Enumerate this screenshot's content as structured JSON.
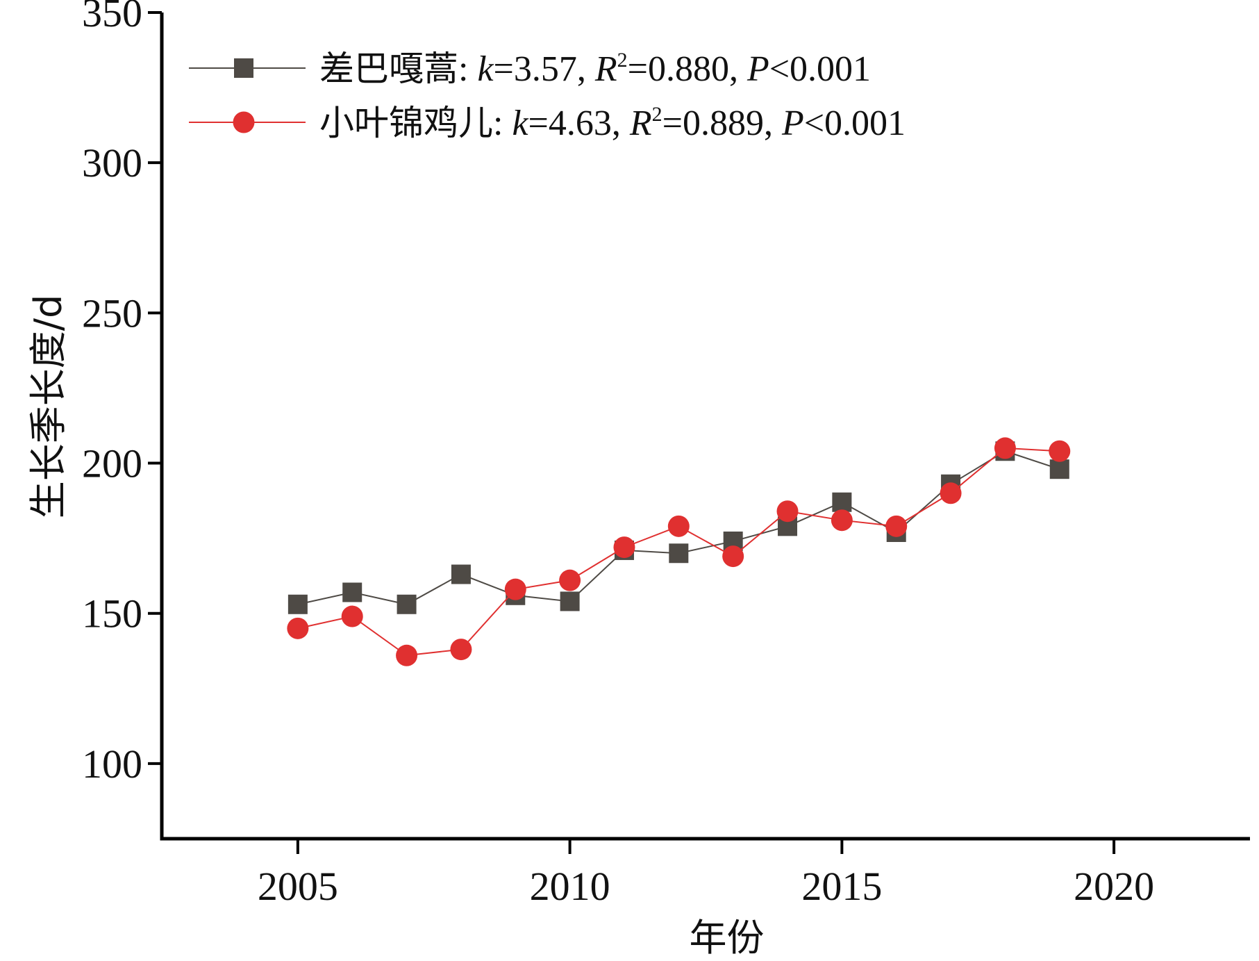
{
  "chart_data": {
    "type": "line",
    "xlabel": "年份",
    "ylabel": "生长季长度/d",
    "xlim": [
      2002.5,
      2022.5
    ],
    "ylim": [
      75,
      350
    ],
    "x_ticks": [
      2005,
      2010,
      2015,
      2020
    ],
    "y_ticks": [
      100,
      150,
      200,
      250,
      300,
      350
    ],
    "grid": false,
    "legend_position": "top-left",
    "x": [
      2005,
      2006,
      2007,
      2008,
      2009,
      2010,
      2011,
      2012,
      2013,
      2014,
      2015,
      2016,
      2017,
      2018,
      2019
    ],
    "series": [
      {
        "name": "差巴嘎蒿",
        "stats": {
          "k": "3.57",
          "R2": "0.880",
          "P": "0.001"
        },
        "color": "#4e4a45",
        "marker": "square",
        "values": [
          153,
          157,
          153,
          163,
          156,
          154,
          171,
          170,
          174,
          179,
          187,
          177,
          193,
          204,
          198
        ]
      },
      {
        "name": "小叶锦鸡儿",
        "stats": {
          "k": "4.63",
          "R2": "0.889",
          "P": "0.001"
        },
        "color": "#e03030",
        "marker": "circle",
        "values": [
          145,
          149,
          136,
          138,
          158,
          161,
          172,
          179,
          169,
          184,
          181,
          179,
          190,
          205,
          204
        ]
      }
    ]
  }
}
